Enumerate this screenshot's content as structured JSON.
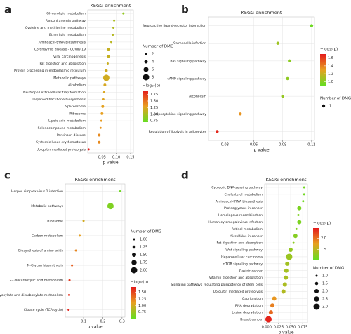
{
  "chart_data": [
    {
      "type": "scatter",
      "label": "a",
      "title": "KEGG enrichment",
      "xlabel": "p value",
      "size_title": "Number of DMG",
      "color_title": "−log₁₀(p)",
      "categories": [
        "Glycerolipid metabolism",
        "Fanconi anemia pathway",
        "Cysteine and methionine metabolism",
        "Ether lipid metabolism",
        "Aminoacyl-tRNA biosynthesis",
        "Coronavirus disease - COVID-19",
        "Viral carcinogenesis",
        "Fat digestion and absorption",
        "Protein processing in endoplasmic reticulum",
        "Metabolic pathways",
        "Alcoholism",
        "Neutrophil extracellular trap formation",
        "Terpenoid backbone biosynthesis",
        "Spliceosome",
        "Ribosome",
        "Lipoic acid metabolism",
        "Selenocompound metabolism",
        "Parkinson disease",
        "Systemic lupus erythematosus",
        "Ubiquitin mediated proteolysis"
      ],
      "x": [
        0.125,
        0.0925,
        0.09,
        0.0875,
        0.0825,
        0.0725,
        0.0725,
        0.07,
        0.065,
        0.065,
        0.06,
        0.0575,
        0.055,
        0.0525,
        0.05,
        0.0475,
        0.045,
        0.04,
        0.04,
        0.003
      ],
      "sizes": [
        2,
        2,
        2,
        2,
        2,
        3,
        3,
        2,
        3,
        8,
        3,
        2,
        2,
        3,
        3,
        2,
        2,
        3,
        3,
        2
      ],
      "xlim": [
        0,
        0.16
      ],
      "xticks": [
        0.05,
        {
          "value": 0.1,
          "label": "0.10"
        },
        0.15
      ],
      "size_lim": [
        2,
        8
      ],
      "size_ticks": [
        2,
        4,
        6,
        8
      ],
      "color_lim": [
        0.7,
        1.9
      ],
      "color_ticks": [
        {
          "value": 1.75,
          "label": "1.75"
        },
        {
          "value": 1.5,
          "label": "1.50"
        },
        {
          "value": 1.25,
          "label": "1.25"
        },
        {
          "value": 1.0,
          "label": "1.00"
        },
        0.75
      ],
      "colors": [
        "#66dd22",
        "#e8a020",
        "#e41a1c"
      ],
      "grid": true
    },
    {
      "type": "scatter",
      "label": "b",
      "title": "KEGG enrichment",
      "xlabel": "p value",
      "size_title": "Number of DMG",
      "color_title": "−log₁₀(p)",
      "categories": [
        "Neuroactive ligand-receptor interaction",
        "Salmonella infection",
        "Ras signaling pathway",
        "cAMP signaling pathway",
        "Alcoholism",
        "Adipocytokine signaling pathway",
        "Regulation of lipolysis in adipocytes"
      ],
      "x": [
        0.12,
        0.085,
        0.097,
        0.095,
        0.09,
        0.046,
        0.022
      ],
      "sizes": [
        1,
        1,
        1,
        1,
        1,
        1,
        1
      ],
      "xlim": [
        0.013,
        0.123
      ],
      "xticks": [
        0.03,
        0.06,
        0.09,
        0.12
      ],
      "size_lim": [
        1,
        1
      ],
      "size_ticks": [
        1
      ],
      "color_lim": [
        0.9,
        1.7
      ],
      "color_ticks": [
        1.6,
        1.4,
        1.2,
        {
          "value": 1.0,
          "label": "1.0"
        }
      ],
      "colors": [
        "#66dd22",
        "#e8a020",
        "#e41a1c"
      ],
      "grid": true
    },
    {
      "type": "scatter",
      "label": "c",
      "title": "KEGG enrichment",
      "xlabel": "p value",
      "size_title": "Number of DMG",
      "color_title": "−log₁₀(p)",
      "categories": [
        "Herpes simplex virus 1 infection",
        "Metabolic pathways",
        "Ribosome",
        "Carbon metabolism",
        "Biosynthesis of amino acids",
        "N-Glycan biosynthesis",
        "2-Oxocarboxylic acid metabolism",
        "Glyoxylate and dicarboxylate metabolism",
        "Citrate cycle (TCA cycle)"
      ],
      "x": [
        0.29,
        0.24,
        0.1,
        0.08,
        0.06,
        0.04,
        0.027,
        0.025,
        0.022
      ],
      "sizes": [
        1,
        2,
        1,
        1,
        1,
        1,
        1,
        1,
        1
      ],
      "xlim": [
        0.005,
        0.315
      ],
      "xticks": [
        0.1,
        0.2,
        0.3
      ],
      "size_lim": [
        1,
        2
      ],
      "size_ticks": [
        {
          "value": 1,
          "label": "1.00"
        },
        1.25,
        {
          "value": 1.5,
          "label": "1.50"
        },
        1.75,
        {
          "value": 2,
          "label": "2.00"
        }
      ],
      "color_lim": [
        0.5,
        1.7
      ],
      "color_ticks": [
        {
          "value": 1.5,
          "label": "1.50"
        },
        1.25,
        {
          "value": 1.0,
          "label": "1.00"
        },
        0.75
      ],
      "colors": [
        "#66dd22",
        "#e8a020",
        "#e41a1c"
      ],
      "grid": true
    },
    {
      "type": "scatter",
      "label": "d",
      "title": "KEGG enrichment",
      "xlabel": "p value",
      "size_title": "Number of DMG",
      "color_title": "−log₁₀(p)",
      "categories": [
        "Cytosolic DNA-sensing pathway",
        "Cholesterol metabolism",
        "Aminoacyl-tRNA biosynthesis",
        "Proteoglycans in cancer",
        "Homologous recombination",
        "Human cytomegalovirus infection",
        "Retinol metabolism",
        "MicroRNAs in cancer",
        "Fat digestion and absorption",
        "Wnt signaling pathway",
        "Hepatocellular carcinoma",
        "mTOR signaling pathway",
        "Gastric cancer",
        "Vitamin digestion and absorption",
        "Signaling pathways regulating pluripotency of stem cells",
        "Ubiquitin mediated proteolysis",
        "Gap junction",
        "RNA degradation",
        "Lysine degradation",
        "Breast cancer"
      ],
      "x": [
        0.078,
        0.078,
        0.076,
        0.068,
        0.066,
        0.068,
        0.062,
        0.06,
        0.056,
        0.05,
        0.047,
        0.043,
        0.041,
        0.04,
        0.038,
        0.035,
        0.016,
        0.012,
        0.009,
        0.004
      ],
      "sizes": [
        1,
        1,
        1,
        2,
        1,
        2,
        1,
        2,
        1,
        2,
        3,
        2,
        2,
        2,
        2,
        2,
        2,
        2,
        2,
        3
      ],
      "xlim": [
        -0.004,
        0.085
      ],
      "xticks": [
        {
          "value": 0,
          "label": "0.000"
        },
        {
          "value": 0.025,
          "label": "0.025"
        },
        {
          "value": 0.05,
          "label": "0.050"
        },
        {
          "value": 0.075,
          "label": "0.075"
        }
      ],
      "size_lim": [
        1,
        3
      ],
      "size_ticks": [
        {
          "value": 1,
          "label": "1.0"
        },
        1.5,
        {
          "value": 2,
          "label": "2.0"
        },
        2.5,
        {
          "value": 3,
          "label": "3.0"
        }
      ],
      "color_lim": [
        1.05,
        2.45
      ],
      "color_ticks": [
        {
          "value": 2,
          "label": "2.0"
        },
        1.5
      ],
      "colors": [
        "#66dd22",
        "#e8a020",
        "#e41a1c"
      ],
      "grid": true
    }
  ]
}
